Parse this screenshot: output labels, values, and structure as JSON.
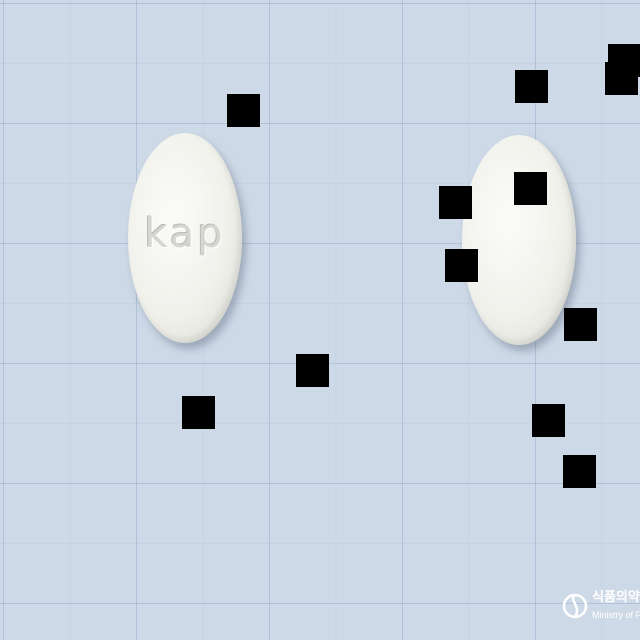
{
  "scene": {
    "description_free": true,
    "background_color": "#cdd9e7"
  },
  "pills": {
    "left": {
      "imprint": "kap",
      "color": "#f1f1ec"
    },
    "right": {
      "imprint": "",
      "color": "#f1f1ec"
    }
  },
  "watermark": {
    "korean": "식품의약품",
    "english": "Ministry of Food"
  }
}
